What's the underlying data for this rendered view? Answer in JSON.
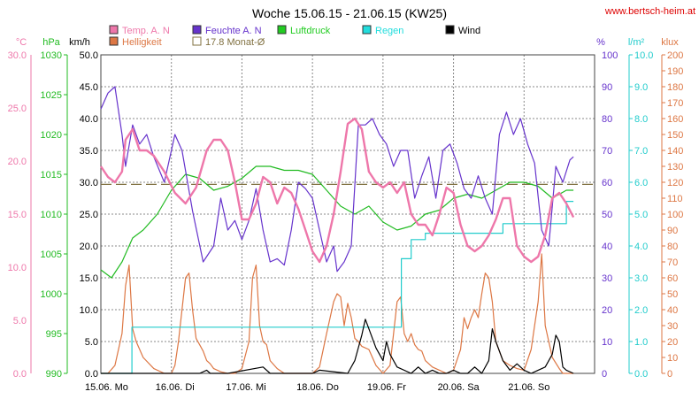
{
  "site": "www.bertsch-heim.at",
  "chart_data": {
    "type": "line",
    "title": "Woche 15.06.15 - 21.06.15 (KW25)",
    "grid": true,
    "x": {
      "range": [
        0,
        7
      ],
      "ticks": [
        "15.06. Mo",
        "16.06. Di",
        "17.06. Mi",
        "18.06. Do",
        "19.06. Fr",
        "20.06. Sa",
        "21.06. So"
      ]
    },
    "axes": [
      {
        "id": "temp",
        "side": "left",
        "unit": "°C",
        "min": 0,
        "max": 30,
        "ticks": [
          "0.0",
          "5.0",
          "10.0",
          "15.0",
          "20.0",
          "25.0",
          "30.0"
        ],
        "color": "#ee77aa"
      },
      {
        "id": "press",
        "side": "left",
        "unit": "hPa",
        "min": 990,
        "max": 1030,
        "ticks": [
          "990",
          "995",
          "1000",
          "1005",
          "1010",
          "1015",
          "1020",
          "1025",
          "1030"
        ],
        "color": "#22bb22"
      },
      {
        "id": "wind",
        "side": "left",
        "unit": "km/h",
        "min": 0,
        "max": 50,
        "ticks": [
          "0.0",
          "5.0",
          "10.0",
          "15.0",
          "20.0",
          "25.0",
          "30.0",
          "35.0",
          "40.0",
          "45.0",
          "50.0"
        ],
        "color": "#000000"
      },
      {
        "id": "hum",
        "side": "right",
        "unit": "%",
        "min": 0,
        "max": 100,
        "ticks": [
          "0",
          "10",
          "20",
          "30",
          "40",
          "50",
          "60",
          "70",
          "80",
          "90",
          "100"
        ],
        "color": "#6633cc"
      },
      {
        "id": "rain",
        "side": "right",
        "unit": "l/m²",
        "min": 0,
        "max": 10,
        "ticks": [
          "0.0",
          "1.0",
          "2.0",
          "3.0",
          "4.0",
          "5.0",
          "6.0",
          "7.0",
          "8.0",
          "9.0",
          "10.0"
        ],
        "color": "#22cccc"
      },
      {
        "id": "lux",
        "side": "right",
        "unit": "klux",
        "min": 0,
        "max": 200,
        "ticks": [
          "0",
          "10",
          "20",
          "30",
          "40",
          "50",
          "60",
          "70",
          "80",
          "90",
          "100",
          "110",
          "120",
          "130",
          "140",
          "150",
          "160",
          "170",
          "180",
          "190",
          "200"
        ],
        "color": "#dd7744"
      }
    ],
    "series": [
      {
        "name": "Temp. A. N",
        "axis": "temp",
        "color": "#ee77aa",
        "x": [
          0,
          0.1,
          0.2,
          0.3,
          0.35,
          0.45,
          0.55,
          0.65,
          0.75,
          0.9,
          1.05,
          1.2,
          1.35,
          1.5,
          1.6,
          1.7,
          1.8,
          1.9,
          2.0,
          2.1,
          2.2,
          2.3,
          2.4,
          2.5,
          2.6,
          2.7,
          2.8,
          2.9,
          3.0,
          3.1,
          3.2,
          3.3,
          3.4,
          3.5,
          3.6,
          3.7,
          3.8,
          3.9,
          4.0,
          4.1,
          4.2,
          4.3,
          4.4,
          4.5,
          4.6,
          4.7,
          4.8,
          4.9,
          5.0,
          5.1,
          5.2,
          5.3,
          5.4,
          5.5,
          5.6,
          5.7,
          5.8,
          5.9,
          6.0,
          6.1,
          6.2,
          6.3,
          6.4,
          6.5,
          6.6,
          6.7
        ],
        "y": [
          19.5,
          18.5,
          18,
          19,
          22,
          23,
          21,
          21,
          20.5,
          19,
          17,
          16,
          17.5,
          21,
          22,
          22,
          21,
          18,
          14.5,
          14.5,
          16,
          18.5,
          18,
          16,
          17.5,
          17,
          15.5,
          13.5,
          11.5,
          10.5,
          12,
          15,
          19,
          23.5,
          24,
          23,
          19,
          18,
          17.5,
          18,
          17,
          18,
          15,
          14,
          14,
          13,
          15,
          17.5,
          17,
          14,
          12,
          11.5,
          12,
          13,
          14.5,
          16.5,
          16.5,
          12,
          11,
          10.5,
          11,
          13,
          16.5,
          17,
          16,
          14.7
        ]
      },
      {
        "name": "Feuchte A. N",
        "axis": "hum",
        "color": "#6633cc",
        "x": [
          0,
          0.1,
          0.2,
          0.3,
          0.35,
          0.45,
          0.55,
          0.65,
          0.75,
          0.9,
          1.05,
          1.15,
          1.3,
          1.45,
          1.6,
          1.7,
          1.8,
          1.9,
          2.0,
          2.1,
          2.2,
          2.3,
          2.4,
          2.5,
          2.6,
          2.7,
          2.8,
          2.9,
          3.0,
          3.1,
          3.2,
          3.3,
          3.35,
          3.45,
          3.55,
          3.65,
          3.75,
          3.85,
          3.95,
          4.05,
          4.15,
          4.25,
          4.35,
          4.45,
          4.55,
          4.65,
          4.75,
          4.85,
          4.95,
          5.05,
          5.15,
          5.25,
          5.35,
          5.45,
          5.55,
          5.65,
          5.75,
          5.85,
          5.95,
          6.05,
          6.15,
          6.25,
          6.35,
          6.45,
          6.55,
          6.65,
          6.7
        ],
        "y": [
          83,
          88,
          90,
          75,
          65,
          78,
          72,
          75,
          68,
          60,
          75,
          70,
          51,
          35,
          40,
          55,
          45,
          48,
          42,
          48,
          58,
          45,
          35,
          36,
          34,
          45,
          60,
          58,
          55,
          45,
          35,
          40,
          32,
          35,
          40,
          78,
          78,
          80,
          75,
          72,
          65,
          70,
          70,
          55,
          62,
          68,
          55,
          70,
          72,
          66,
          58,
          55,
          62,
          55,
          50,
          75,
          82,
          75,
          80,
          72,
          66,
          45,
          40,
          65,
          60,
          67,
          68
        ]
      },
      {
        "name": "Luftdruck",
        "axis": "press",
        "color": "#22bb22",
        "x": [
          0,
          0.15,
          0.3,
          0.45,
          0.6,
          0.8,
          1.0,
          1.2,
          1.4,
          1.6,
          1.8,
          2.0,
          2.2,
          2.4,
          2.6,
          2.8,
          3.0,
          3.2,
          3.4,
          3.6,
          3.8,
          4.0,
          4.2,
          4.4,
          4.6,
          4.8,
          5.0,
          5.2,
          5.4,
          5.6,
          5.8,
          6.0,
          6.2,
          6.4,
          6.6,
          6.7
        ],
        "y": [
          1003,
          1002,
          1004,
          1007,
          1008,
          1010,
          1013,
          1015,
          1014.5,
          1013,
          1013.5,
          1014.5,
          1016,
          1016,
          1015.5,
          1015.5,
          1015,
          1013,
          1011,
          1010,
          1011,
          1009,
          1008,
          1008.5,
          1010,
          1010.5,
          1012,
          1012.5,
          1012,
          1013,
          1014,
          1014,
          1013.5,
          1012,
          1013,
          1013
        ]
      },
      {
        "name": "Regen",
        "axis": "rain",
        "color": "#22cccc",
        "x": [
          0,
          0.44,
          0.44,
          4.26,
          4.26,
          4.4,
          4.4,
          4.6,
          4.6,
          5.7,
          5.7,
          6.6,
          6.6,
          6.7
        ],
        "y": [
          0,
          0,
          1.45,
          1.45,
          3.6,
          3.6,
          4.2,
          4.2,
          4.4,
          4.4,
          4.7,
          4.7,
          5.4,
          5.4
        ]
      },
      {
        "name": "Wind",
        "axis": "wind",
        "color": "#000000",
        "x": [
          0,
          1.4,
          1.5,
          1.55,
          1.8,
          2.3,
          2.4,
          3.0,
          3.1,
          3.5,
          3.6,
          3.7,
          3.75,
          3.8,
          3.9,
          4.0,
          4.05,
          4.1,
          4.2,
          4.4,
          4.5,
          4.6,
          4.7,
          4.8,
          4.9,
          5.0,
          5.1,
          5.2,
          5.3,
          5.4,
          5.5,
          5.55,
          5.6,
          5.7,
          5.8,
          5.9,
          6.0,
          6.1,
          6.2,
          6.3,
          6.4,
          6.45,
          6.5,
          6.55,
          6.6,
          6.7
        ],
        "y": [
          0,
          0,
          0.5,
          0,
          0,
          1,
          0,
          0,
          0.5,
          0,
          2,
          6,
          8.5,
          7,
          4,
          2,
          5,
          3,
          1,
          0,
          1,
          0,
          0.5,
          0,
          0,
          0.5,
          0,
          0,
          1,
          0,
          2,
          7,
          5,
          2,
          0.5,
          1.5,
          0.5,
          0,
          0.5,
          1,
          3,
          6,
          5,
          1,
          0.5,
          0
        ]
      },
      {
        "name": "Helligkeit",
        "axis": "lux",
        "color": "#dd7744",
        "x": [
          0,
          0.1,
          0.2,
          0.3,
          0.35,
          0.4,
          0.45,
          0.5,
          0.6,
          0.75,
          0.9,
          1.0,
          1.05,
          1.1,
          1.15,
          1.2,
          1.25,
          1.3,
          1.35,
          1.4,
          1.45,
          1.5,
          1.55,
          1.6,
          1.7,
          1.8,
          1.9,
          2.0,
          2.1,
          2.15,
          2.2,
          2.25,
          2.3,
          2.35,
          2.4,
          2.5,
          2.6,
          2.7,
          2.8,
          3.0,
          3.1,
          3.2,
          3.3,
          3.35,
          3.4,
          3.45,
          3.5,
          3.55,
          3.6,
          3.65,
          3.7,
          3.8,
          3.9,
          4.0,
          4.1,
          4.15,
          4.2,
          4.25,
          4.3,
          4.35,
          4.4,
          4.45,
          4.5,
          4.55,
          4.6,
          4.7,
          4.8,
          4.9,
          5.0,
          5.1,
          5.15,
          5.2,
          5.25,
          5.3,
          5.35,
          5.4,
          5.45,
          5.5,
          5.55,
          5.6,
          5.7,
          5.8,
          5.9,
          6.0,
          6.1,
          6.15,
          6.2,
          6.25,
          6.3,
          6.35,
          6.4,
          6.5,
          6.55,
          6.6,
          6.7
        ],
        "y": [
          0,
          0,
          5,
          25,
          55,
          68,
          28,
          20,
          10,
          3,
          0,
          0,
          5,
          20,
          40,
          60,
          63,
          40,
          22,
          18,
          14,
          8,
          6,
          3,
          1,
          0,
          0,
          3,
          20,
          60,
          68,
          30,
          20,
          18,
          8,
          3,
          0,
          0,
          0,
          0,
          4,
          25,
          45,
          50,
          48,
          30,
          44,
          35,
          22,
          20,
          17,
          15,
          5,
          0,
          5,
          25,
          45,
          48,
          25,
          20,
          25,
          18,
          15,
          14,
          8,
          4,
          2,
          0,
          2,
          15,
          35,
          28,
          35,
          40,
          35,
          50,
          63,
          60,
          45,
          20,
          8,
          5,
          3,
          2,
          15,
          30,
          45,
          75,
          30,
          20,
          10,
          3,
          0,
          0,
          0
        ]
      }
    ],
    "reference_lines": [
      {
        "name": "17.8 Monat-Ø",
        "axis": "temp",
        "value": 17.8,
        "color": "#807040",
        "dash": true
      }
    ],
    "legend": {
      "placement": "top",
      "entries": [
        {
          "label": "Temp. A. N",
          "color": "#ee77aa",
          "filled": true
        },
        {
          "label": "Feuchte A. N",
          "color": "#6633cc",
          "filled": true
        },
        {
          "label": "Luftdruck",
          "color": "#22cc22",
          "filled": true
        },
        {
          "label": "Regen",
          "color": "#22dddd",
          "filled": true
        },
        {
          "label": "Wind",
          "color": "#000000",
          "filled": true
        },
        {
          "label": "Helligkeit",
          "color": "#dd7744",
          "filled": true
        },
        {
          "label": "17.8 Monat-Ø",
          "color": "#807040",
          "filled": false
        }
      ]
    }
  }
}
